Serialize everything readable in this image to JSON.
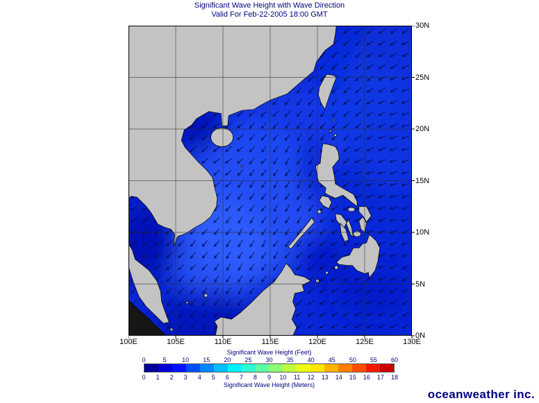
{
  "header": {
    "title": "Significant Wave Height with Wave Direction",
    "subtitle": "Valid For Feb-22-2005 18:00 GMT"
  },
  "colors": {
    "navy": "#000080",
    "land": "#c3c3c3",
    "ocean_base": "#0727d8",
    "grid": "#2a2a2a",
    "arrow": "#001050",
    "coast": "#000000"
  },
  "map": {
    "x_tick_labels": [
      "100E",
      "105E",
      "110E",
      "115E",
      "120E",
      "125E",
      "130E"
    ],
    "y_tick_labels": [
      "30N",
      "25N",
      "20N",
      "15N",
      "10N",
      "5N",
      "0N"
    ],
    "lon_range": [
      "100E",
      "130E"
    ],
    "lat_range": [
      "0N",
      "30N"
    ],
    "arrows": {
      "spacing": 17,
      "length": 11,
      "base_angle_west_deg": 228,
      "base_angle_east_deg": 204
    }
  },
  "legend": {
    "feet_label": "Significant Wave Height (Feet)",
    "feet_ticks": [
      "0",
      "5",
      "10",
      "15",
      "20",
      "25",
      "30",
      "35",
      "40",
      "45",
      "50",
      "55",
      "60"
    ],
    "meters_label": "Significant Wave Height (Meters)",
    "meter_ticks": [
      "0",
      "1",
      "2",
      "3",
      "4",
      "5",
      "6",
      "7",
      "8",
      "9",
      "10",
      "11",
      "12",
      "13",
      "14",
      "15",
      "16",
      "17",
      "18"
    ],
    "segment_colors": [
      "#000099",
      "#0000d6",
      "#0013ff",
      "#004dff",
      "#0087ff",
      "#00bfff",
      "#00f2ff",
      "#2bffd4",
      "#5cffa3",
      "#8cff73",
      "#bfff40",
      "#eeff11",
      "#ffe600",
      "#ffb300",
      "#ff8000",
      "#ff4d00",
      "#f21800",
      "#cc0000"
    ]
  },
  "logo": {
    "text": "oceanweather inc."
  }
}
